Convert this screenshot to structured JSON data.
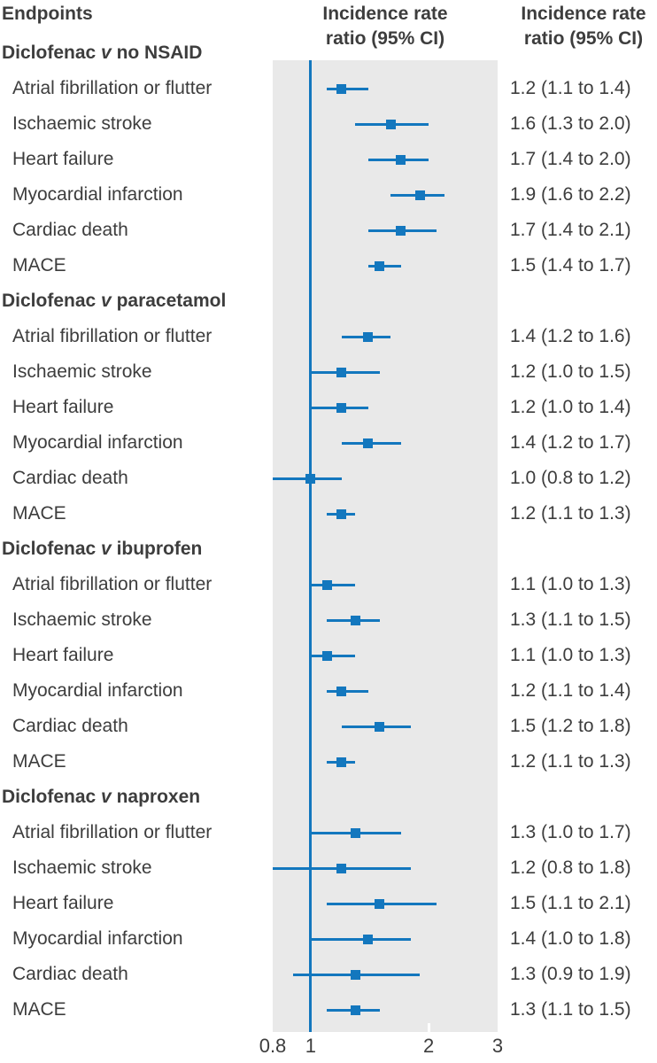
{
  "header": {
    "endpoints": "Endpoints",
    "plot_column_title_line1": "Incidence rate",
    "plot_column_title_line2": "ratio (95% CI)",
    "value_column_title_line1": "Incidence rate",
    "value_column_title_line2": "ratio (95% CI)"
  },
  "colors": {
    "accent": "#1377be",
    "plot_background": "#e9e9e9",
    "text": "#3d3d3d",
    "tick_mark": "#ffffff",
    "page_background": "#ffffff"
  },
  "chart_data": {
    "type": "forest",
    "x_scale": "log",
    "x_range": [
      0.8,
      3
    ],
    "reference_line": 1,
    "x_ticks": [
      {
        "value": 0.8,
        "label": "0.8"
      },
      {
        "value": 1,
        "label": "1"
      },
      {
        "value": 2,
        "label": "2"
      },
      {
        "value": 3,
        "label": "3"
      }
    ],
    "groups": [
      {
        "treatment": "Diclofenac",
        "versus": "v",
        "comparator": "no NSAID",
        "rows": [
          {
            "endpoint": "Atrial fibrillation or flutter",
            "est": 1.2,
            "lo": 1.1,
            "hi": 1.4,
            "value_text": "1.2 (1.1 to 1.4)"
          },
          {
            "endpoint": "Ischaemic stroke",
            "est": 1.6,
            "lo": 1.3,
            "hi": 2.0,
            "value_text": "1.6 (1.3 to 2.0)"
          },
          {
            "endpoint": "Heart failure",
            "est": 1.7,
            "lo": 1.4,
            "hi": 2.0,
            "value_text": "1.7 (1.4 to 2.0)"
          },
          {
            "endpoint": "Myocardial infarction",
            "est": 1.9,
            "lo": 1.6,
            "hi": 2.2,
            "value_text": "1.9 (1.6 to 2.2)"
          },
          {
            "endpoint": "Cardiac death",
            "est": 1.7,
            "lo": 1.4,
            "hi": 2.1,
            "value_text": "1.7 (1.4 to 2.1)"
          },
          {
            "endpoint": "MACE",
            "est": 1.5,
            "lo": 1.4,
            "hi": 1.7,
            "value_text": "1.5 (1.4 to 1.7)"
          }
        ]
      },
      {
        "treatment": "Diclofenac",
        "versus": "v",
        "comparator": "paracetamol",
        "rows": [
          {
            "endpoint": "Atrial fibrillation or flutter",
            "est": 1.4,
            "lo": 1.2,
            "hi": 1.6,
            "value_text": "1.4 (1.2 to 1.6)"
          },
          {
            "endpoint": "Ischaemic stroke",
            "est": 1.2,
            "lo": 1.0,
            "hi": 1.5,
            "value_text": "1.2 (1.0 to 1.5)"
          },
          {
            "endpoint": "Heart failure",
            "est": 1.2,
            "lo": 1.0,
            "hi": 1.4,
            "value_text": "1.2 (1.0 to 1.4)"
          },
          {
            "endpoint": "Myocardial infarction",
            "est": 1.4,
            "lo": 1.2,
            "hi": 1.7,
            "value_text": "1.4 (1.2 to 1.7)"
          },
          {
            "endpoint": "Cardiac death",
            "est": 1.0,
            "lo": 0.8,
            "hi": 1.2,
            "value_text": "1.0 (0.8 to 1.2)"
          },
          {
            "endpoint": "MACE",
            "est": 1.2,
            "lo": 1.1,
            "hi": 1.3,
            "value_text": "1.2 (1.1 to 1.3)"
          }
        ]
      },
      {
        "treatment": "Diclofenac",
        "versus": "v",
        "comparator": "ibuprofen",
        "rows": [
          {
            "endpoint": "Atrial fibrillation or flutter",
            "est": 1.1,
            "lo": 1.0,
            "hi": 1.3,
            "value_text": "1.1 (1.0 to 1.3)"
          },
          {
            "endpoint": "Ischaemic stroke",
            "est": 1.3,
            "lo": 1.1,
            "hi": 1.5,
            "value_text": "1.3 (1.1 to 1.5)"
          },
          {
            "endpoint": "Heart failure",
            "est": 1.1,
            "lo": 1.0,
            "hi": 1.3,
            "value_text": "1.1 (1.0 to 1.3)"
          },
          {
            "endpoint": "Myocardial infarction",
            "est": 1.2,
            "lo": 1.1,
            "hi": 1.4,
            "value_text": "1.2 (1.1 to 1.4)"
          },
          {
            "endpoint": "Cardiac death",
            "est": 1.5,
            "lo": 1.2,
            "hi": 1.8,
            "value_text": "1.5 (1.2 to 1.8)"
          },
          {
            "endpoint": "MACE",
            "est": 1.2,
            "lo": 1.1,
            "hi": 1.3,
            "value_text": "1.2 (1.1 to 1.3)"
          }
        ]
      },
      {
        "treatment": "Diclofenac",
        "versus": "v",
        "comparator": "naproxen",
        "rows": [
          {
            "endpoint": "Atrial fibrillation or flutter",
            "est": 1.3,
            "lo": 1.0,
            "hi": 1.7,
            "value_text": "1.3 (1.0 to 1.7)"
          },
          {
            "endpoint": "Ischaemic stroke",
            "est": 1.2,
            "lo": 0.8,
            "hi": 1.8,
            "value_text": "1.2 (0.8 to 1.8)"
          },
          {
            "endpoint": "Heart failure",
            "est": 1.5,
            "lo": 1.1,
            "hi": 2.1,
            "value_text": "1.5 (1.1 to 2.1)"
          },
          {
            "endpoint": "Myocardial infarction",
            "est": 1.4,
            "lo": 1.0,
            "hi": 1.8,
            "value_text": "1.4 (1.0 to 1.8)"
          },
          {
            "endpoint": "Cardiac death",
            "est": 1.3,
            "lo": 0.9,
            "hi": 1.9,
            "value_text": "1.3 (0.9 to 1.9)"
          },
          {
            "endpoint": "MACE",
            "est": 1.3,
            "lo": 1.1,
            "hi": 1.5,
            "value_text": "1.3 (1.1 to 1.5)"
          }
        ]
      }
    ]
  }
}
